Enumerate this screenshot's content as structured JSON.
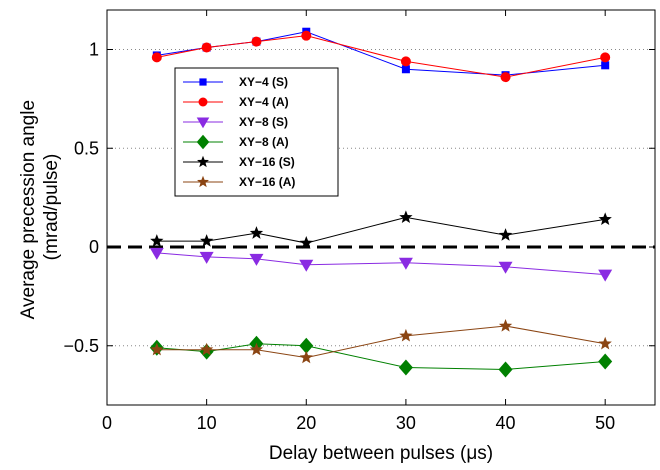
{
  "chart_data": {
    "type": "line",
    "title": "",
    "xlabel": "Delay between pulses (μs)",
    "ylabel_lines": [
      "Average precession angle",
      "(mrad/pulse)"
    ],
    "xlim": [
      0,
      55
    ],
    "ylim": [
      -0.8,
      1.2
    ],
    "xticks": [
      0,
      10,
      20,
      30,
      40,
      50
    ],
    "yticks": [
      -0.5,
      0,
      0.5,
      1
    ],
    "x": [
      5,
      10,
      15,
      20,
      30,
      40,
      50
    ],
    "grid": "horizontal dotted at y ticks",
    "legend_position": "upper-left inside",
    "reference_line": {
      "y": 0,
      "style": "dashed black"
    },
    "series": [
      {
        "name": "XY−4 (S)",
        "marker": "square",
        "color": "#0000ff",
        "values": [
          0.97,
          1.01,
          1.04,
          1.09,
          0.9,
          0.87,
          0.92
        ]
      },
      {
        "name": "XY−4 (A)",
        "marker": "circle",
        "color": "#ff0000",
        "values": [
          0.96,
          1.01,
          1.04,
          1.07,
          0.94,
          0.86,
          0.96
        ]
      },
      {
        "name": "XY−8 (S)",
        "marker": "triangle-down",
        "color": "#8a2be2",
        "values": [
          -0.03,
          -0.05,
          -0.06,
          -0.09,
          -0.08,
          -0.1,
          -0.14
        ]
      },
      {
        "name": "XY−8 (A)",
        "marker": "diamond",
        "color": "#008000",
        "values": [
          -0.51,
          -0.53,
          -0.49,
          -0.5,
          -0.61,
          -0.62,
          -0.58
        ]
      },
      {
        "name": "XY−16 (S)",
        "marker": "star",
        "color": "#000000",
        "values": [
          0.03,
          0.03,
          0.07,
          0.02,
          0.15,
          0.06,
          0.14
        ]
      },
      {
        "name": "XY−16 (A)",
        "marker": "star",
        "color": "#8b4513",
        "values": [
          -0.52,
          -0.52,
          -0.52,
          -0.56,
          -0.45,
          -0.4,
          -0.49
        ]
      }
    ]
  }
}
